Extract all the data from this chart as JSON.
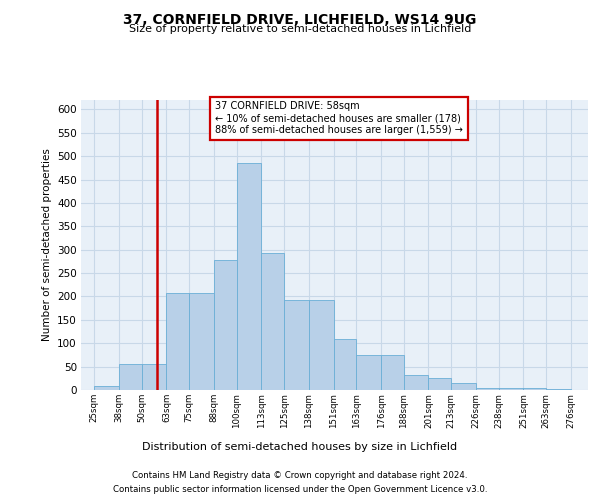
{
  "title1": "37, CORNFIELD DRIVE, LICHFIELD, WS14 9UG",
  "title2": "Size of property relative to semi-detached houses in Lichfield",
  "xlabel": "Distribution of semi-detached houses by size in Lichfield",
  "ylabel": "Number of semi-detached properties",
  "footnote1": "Contains HM Land Registry data © Crown copyright and database right 2024.",
  "footnote2": "Contains public sector information licensed under the Open Government Licence v3.0.",
  "annotation_line1": "37 CORNFIELD DRIVE: 58sqm",
  "annotation_line2": "← 10% of semi-detached houses are smaller (178)",
  "annotation_line3": "88% of semi-detached houses are larger (1,559) →",
  "bar_left_edges": [
    25,
    38,
    50,
    63,
    75,
    88,
    100,
    113,
    125,
    138,
    151,
    163,
    176,
    188,
    201,
    213,
    226,
    238,
    251,
    263
  ],
  "bar_widths": [
    13,
    12,
    13,
    12,
    13,
    12,
    13,
    12,
    13,
    13,
    12,
    13,
    12,
    13,
    12,
    13,
    12,
    13,
    12,
    13
  ],
  "bar_heights": [
    8,
    55,
    55,
    207,
    207,
    278,
    485,
    293,
    192,
    192,
    110,
    75,
    75,
    32,
    25,
    15,
    5,
    5,
    5,
    3
  ],
  "bar_color": "#b8d0e8",
  "bar_edgecolor": "#6aaed6",
  "x_tick_labels": [
    "25sqm",
    "38sqm",
    "50sqm",
    "63sqm",
    "75sqm",
    "88sqm",
    "100sqm",
    "113sqm",
    "125sqm",
    "138sqm",
    "151sqm",
    "163sqm",
    "176sqm",
    "188sqm",
    "201sqm",
    "213sqm",
    "226sqm",
    "238sqm",
    "251sqm",
    "263sqm",
    "276sqm"
  ],
  "x_tick_positions": [
    25,
    38,
    50,
    63,
    75,
    88,
    100,
    113,
    125,
    138,
    151,
    163,
    176,
    188,
    201,
    213,
    226,
    238,
    251,
    263,
    276
  ],
  "ylim": [
    0,
    620
  ],
  "xlim": [
    18,
    285
  ],
  "vline_x": 58,
  "vline_color": "#cc0000",
  "grid_color": "#c8d8e8",
  "background_color": "#e8f0f8",
  "annotation_box_color": "#cc0000",
  "annotation_box_facecolor": "white"
}
